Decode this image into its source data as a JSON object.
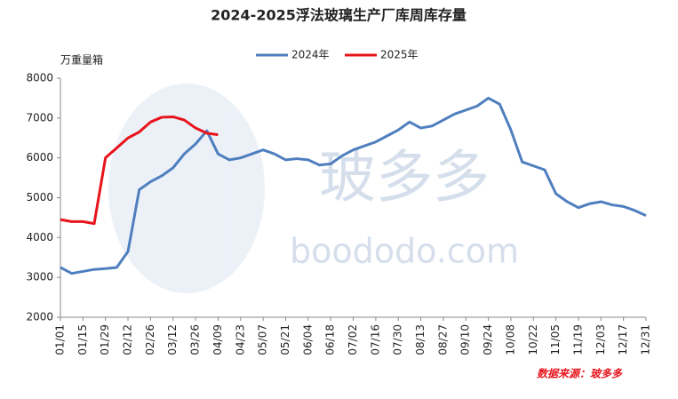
{
  "chart_data": {
    "type": "line",
    "title": "2024-2025浮法玻璃生产厂库周库存量",
    "y_label": "万重量箱",
    "source": "数据来源：玻多多",
    "watermark": [
      "玻多多",
      "boododo.com"
    ],
    "categories": [
      "01/01",
      null,
      "01/15",
      null,
      "01/29",
      null,
      "02/12",
      null,
      "02/26",
      null,
      "03/12",
      null,
      "03/26",
      null,
      "04/09",
      null,
      "04/23",
      null,
      "05/07",
      null,
      "05/21",
      null,
      "06/04",
      null,
      "06/18",
      null,
      "07/02",
      null,
      "07/16",
      null,
      "07/30",
      null,
      "08/13",
      null,
      "08/27",
      null,
      "09/10",
      null,
      "09/24",
      null,
      "10/08",
      null,
      "10/22",
      null,
      "11/05",
      null,
      "11/19",
      null,
      "12/03",
      null,
      "12/17",
      null,
      "12/31"
    ],
    "series": [
      {
        "name": "2024年",
        "color": "#4f7fbf",
        "values": [
          3250,
          3100,
          3150,
          3200,
          3220,
          3250,
          3650,
          5200,
          5400,
          5550,
          5750,
          6100,
          6350,
          6680,
          6100,
          5950,
          6000,
          6100,
          6200,
          6100,
          5950,
          5980,
          5950,
          5820,
          5850,
          6050,
          6200,
          6300,
          6400,
          6550,
          6700,
          6900,
          6750,
          6800,
          6950,
          7100,
          7200,
          7300,
          7500,
          7350,
          6700,
          5900,
          5800,
          5700,
          5100,
          4900,
          4750,
          4850,
          4900,
          4820,
          4780,
          4680,
          4550
        ]
      },
      {
        "name": "2025年",
        "color": "#e8141c",
        "values": [
          4450,
          4400,
          4400,
          4350,
          6000,
          6250,
          6500,
          6650,
          6900,
          7020,
          7030,
          6950,
          6750,
          6620,
          6580,
          null,
          null,
          null,
          null,
          null,
          null,
          null,
          null,
          null,
          null,
          null,
          null,
          null,
          null,
          null,
          null,
          null,
          null,
          null,
          null,
          null,
          null,
          null,
          null,
          null,
          null,
          null,
          null,
          null,
          null,
          null,
          null,
          null,
          null,
          null,
          null,
          null,
          null
        ]
      }
    ],
    "ylim": [
      2000,
      8000
    ],
    "yticks": [
      2000,
      3000,
      4000,
      5000,
      6000,
      7000,
      8000
    ],
    "legend": "top"
  }
}
